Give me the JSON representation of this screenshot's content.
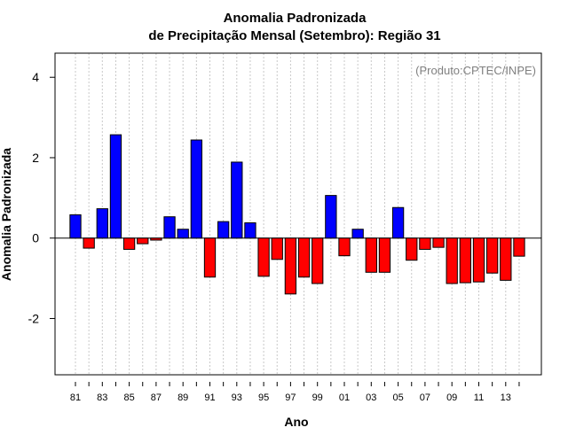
{
  "chart_data": {
    "type": "bar",
    "title": "Anomalia Padronizada",
    "subtitle": "de Precipitação Mensal (Setembro): Região 31",
    "xlabel": "Ano",
    "ylabel": "Anomalia Padronizada",
    "annotation": "(Produto:CPTEC/INPE)",
    "ylim": [
      -3.4,
      4.6
    ],
    "yticks": [
      -2,
      0,
      2,
      4
    ],
    "ytick_labels": [
      "-2",
      "0",
      "2",
      "4"
    ],
    "positive_color": "#0000ff",
    "negative_color": "#ff0000",
    "categories": [
      "81",
      "82",
      "83",
      "84",
      "85",
      "86",
      "87",
      "88",
      "89",
      "90",
      "91",
      "92",
      "93",
      "94",
      "95",
      "96",
      "97",
      "98",
      "99",
      "00",
      "01",
      "02",
      "03",
      "04",
      "05",
      "06",
      "07",
      "08",
      "09",
      "10",
      "11",
      "12",
      "13",
      "14"
    ],
    "xtick_labels": [
      "81",
      "83",
      "85",
      "87",
      "89",
      "91",
      "93",
      "95",
      "97",
      "99",
      "01",
      "03",
      "05",
      "07",
      "09",
      "11",
      "13"
    ],
    "values": [
      0.58,
      -0.25,
      0.73,
      2.57,
      -0.28,
      -0.14,
      -0.05,
      0.53,
      0.22,
      2.44,
      -0.97,
      0.41,
      1.89,
      0.38,
      -0.95,
      -0.53,
      -1.39,
      -0.97,
      -1.13,
      1.06,
      -0.44,
      0.22,
      -0.85,
      -0.85,
      0.76,
      -0.55,
      -0.28,
      -0.23,
      -1.13,
      -1.11,
      -1.09,
      -0.87,
      -1.05,
      -0.45
    ]
  }
}
